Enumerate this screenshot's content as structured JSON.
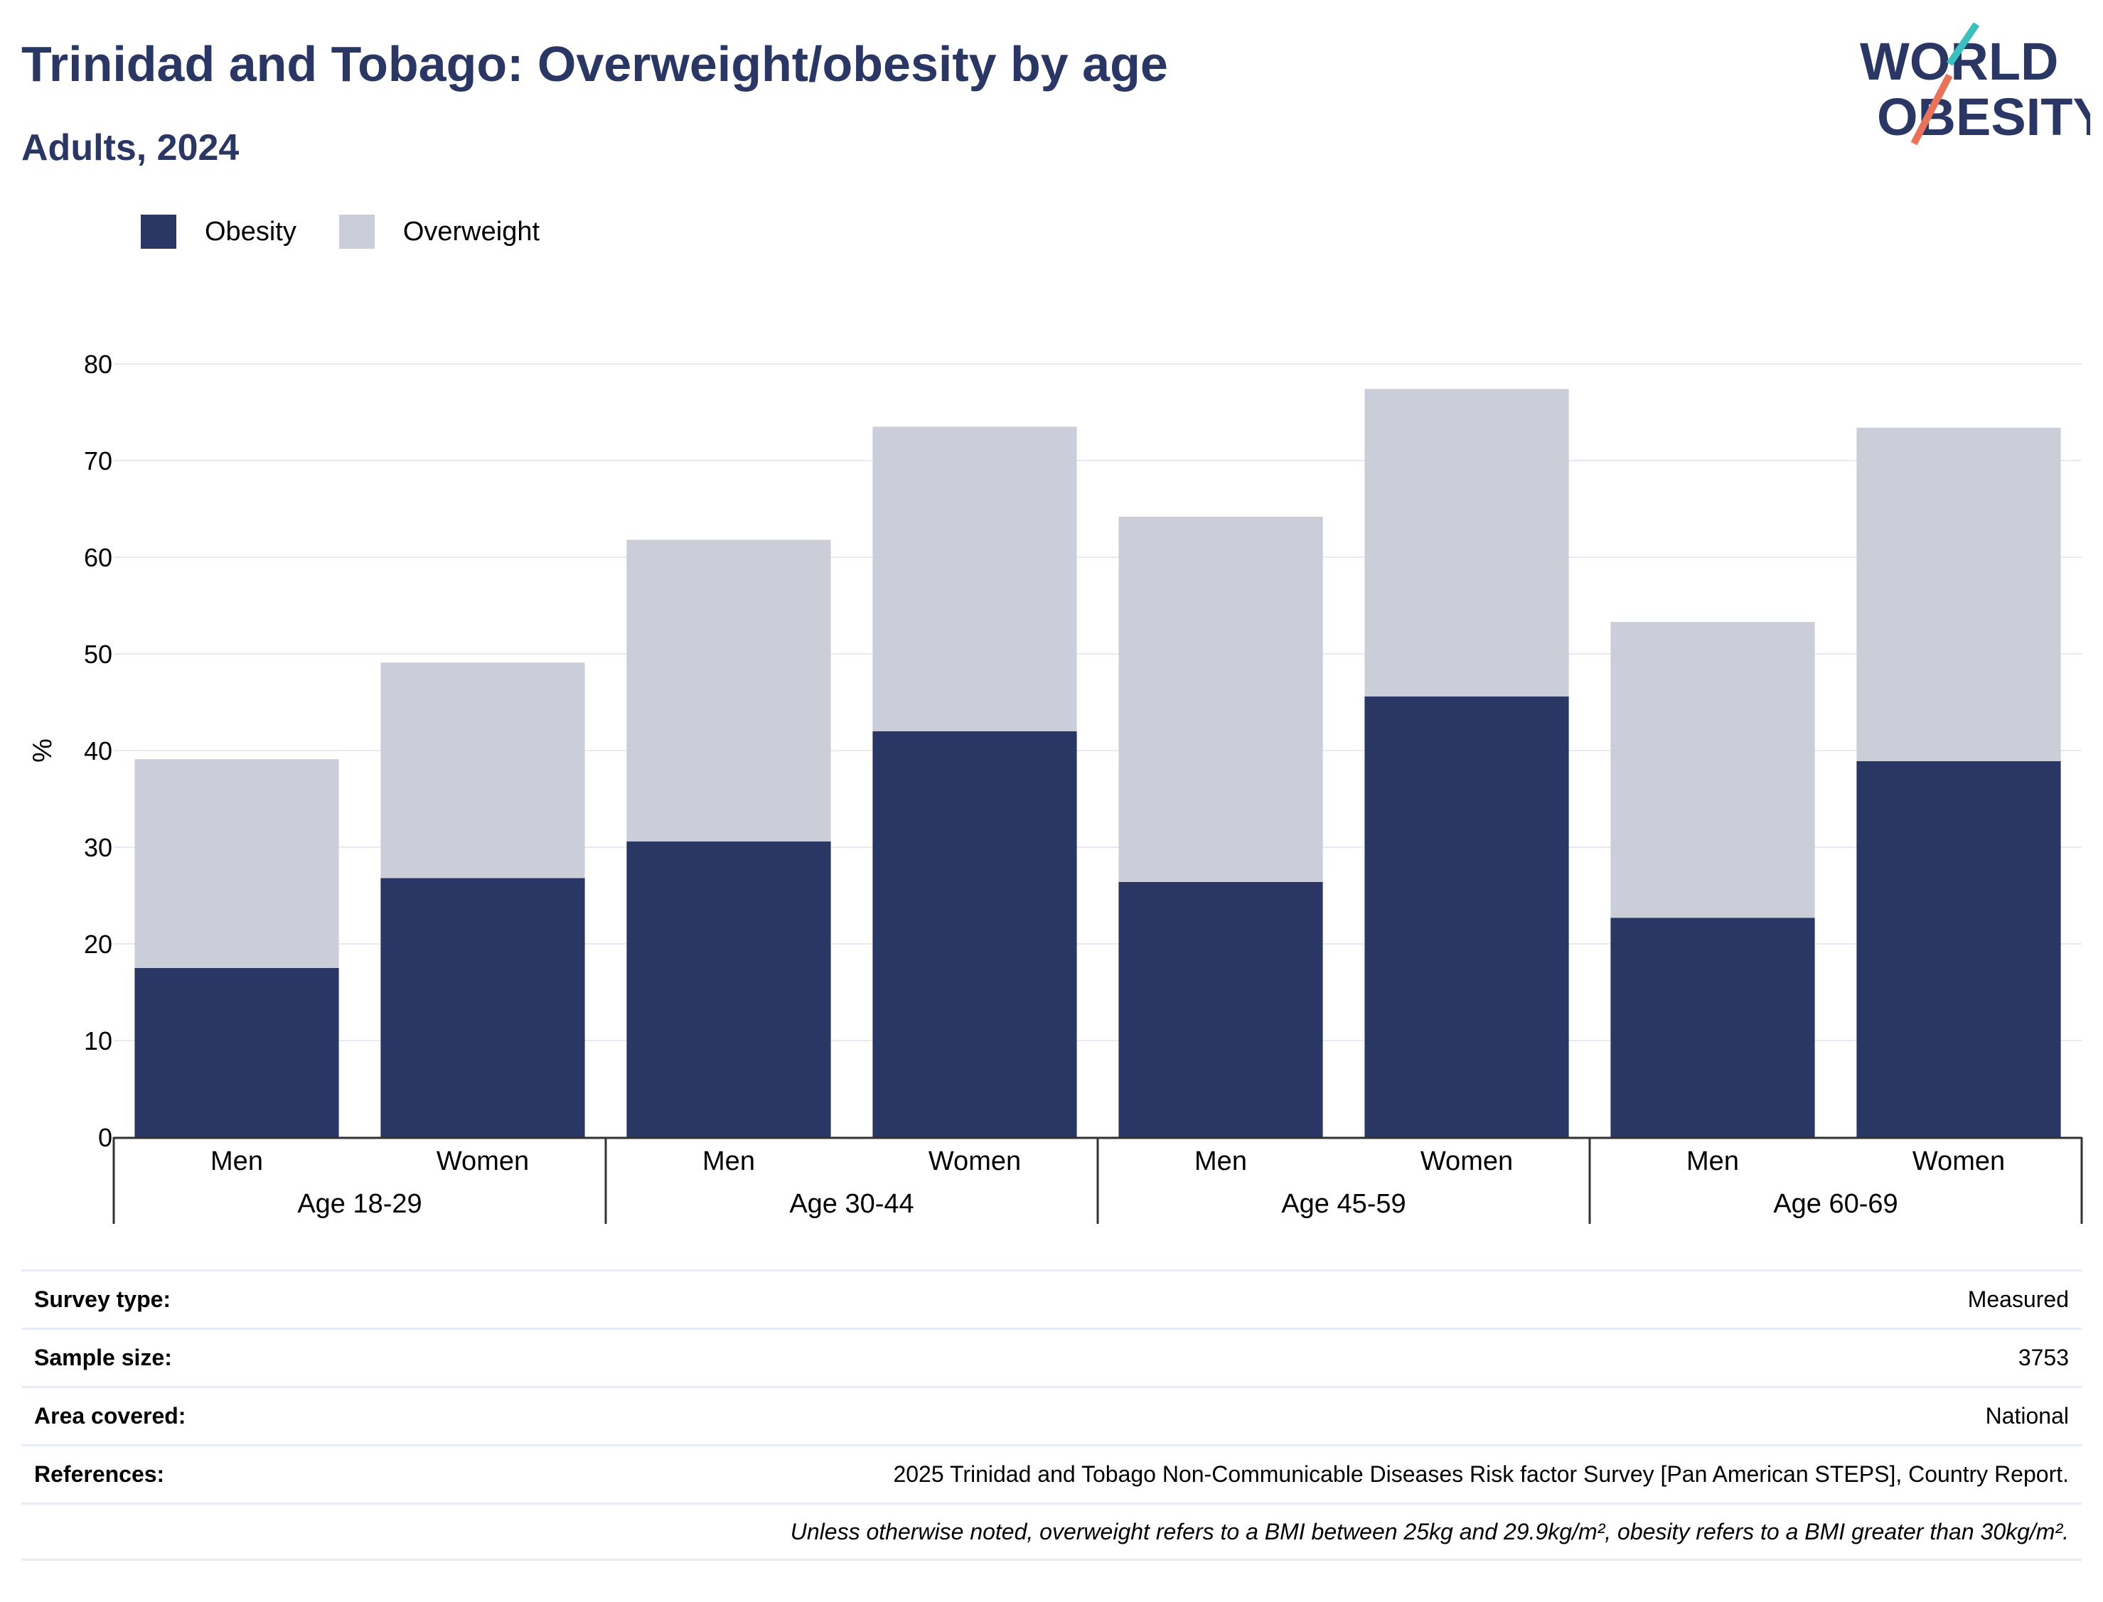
{
  "header": {
    "title": "Trinidad and Tobago: Overweight/obesity by age",
    "subtitle": "Adults, 2024"
  },
  "logo": {
    "line1": "WORLD",
    "line2": "OBESITY",
    "icon": "world-obesity-logo"
  },
  "colors": {
    "obesity": "#2a3663",
    "overweight": "#cbcdd9",
    "grid": "#e9ebf2",
    "brand_teal": "#3bbfbf",
    "brand_coral": "#e8735a"
  },
  "legend": {
    "items": [
      {
        "label": "Obesity"
      },
      {
        "label": "Overweight"
      }
    ]
  },
  "chart_data": {
    "type": "bar",
    "stacked": true,
    "ylabel": "%",
    "ylim": [
      0,
      80
    ],
    "yticks": [
      0,
      10,
      20,
      30,
      40,
      50,
      60,
      70,
      80
    ],
    "grid": true,
    "legend_position": "top-left",
    "groups": [
      "Age 18-29",
      "Age 30-44",
      "Age 45-59",
      "Age 60-69"
    ],
    "categories": [
      "Men",
      "Women",
      "Men",
      "Women",
      "Men",
      "Women",
      "Men",
      "Women"
    ],
    "series": [
      {
        "name": "Obesity",
        "values": [
          17.5,
          26.8,
          30.6,
          42.0,
          26.4,
          45.6,
          22.7,
          38.9
        ]
      },
      {
        "name": "Overweight",
        "values": [
          21.6,
          22.3,
          31.2,
          31.5,
          37.8,
          31.8,
          30.6,
          34.5
        ]
      }
    ]
  },
  "meta": [
    {
      "key": "Survey type:",
      "value": "Measured"
    },
    {
      "key": "Sample size:",
      "value": "3753"
    },
    {
      "key": "Area covered:",
      "value": "National"
    },
    {
      "key": "References:",
      "value": "2025 Trinidad and Tobago Non-Communicable Diseases Risk factor Survey [Pan American STEPS], Country Report."
    },
    {
      "key": "",
      "value": "Unless otherwise noted, overweight refers to a BMI between 25kg and 29.9kg/m², obesity refers to a BMI greater than 30kg/m²."
    }
  ]
}
